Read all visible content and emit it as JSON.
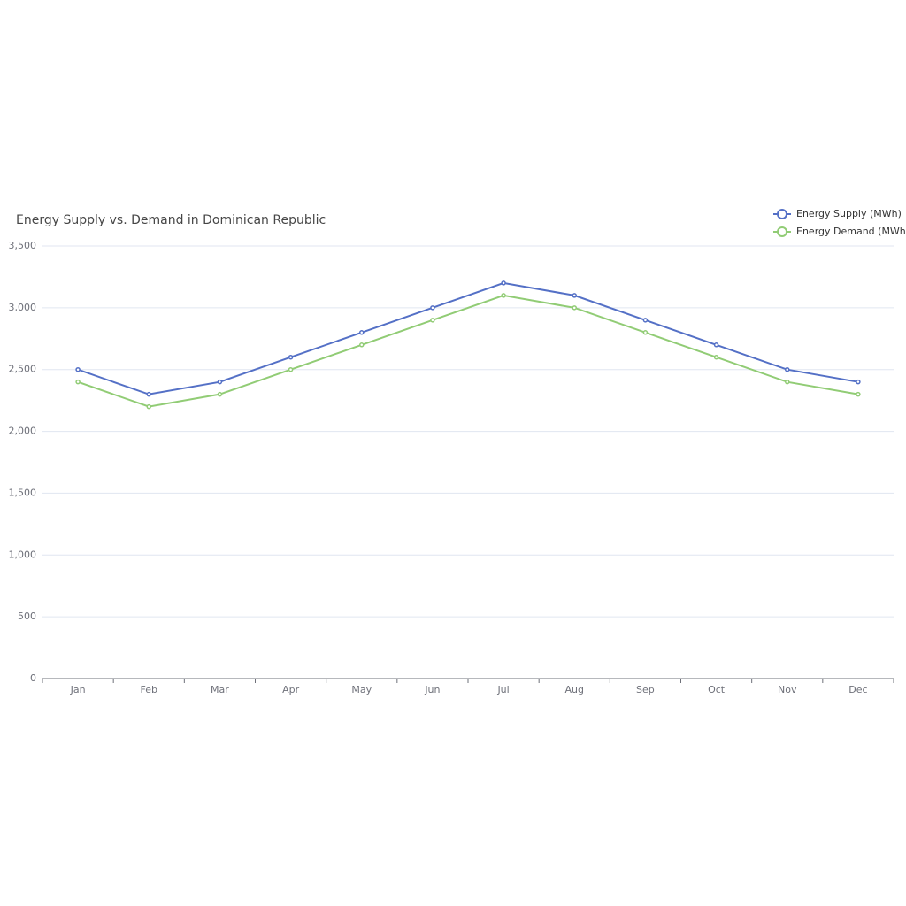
{
  "chart_data": {
    "type": "line",
    "title": "Energy Supply vs. Demand in Dominican Republic",
    "categories": [
      "Jan",
      "Feb",
      "Mar",
      "Apr",
      "May",
      "Jun",
      "Jul",
      "Aug",
      "Sep",
      "Oct",
      "Nov",
      "Dec"
    ],
    "series": [
      {
        "name": "Energy Supply (MWh)",
        "color": "#5470c6",
        "values": [
          2500,
          2300,
          2400,
          2600,
          2800,
          3000,
          3200,
          3100,
          2900,
          2700,
          2500,
          2400
        ]
      },
      {
        "name": "Energy Demand (MWh)",
        "color": "#91cc75",
        "values": [
          2400,
          2200,
          2300,
          2500,
          2700,
          2900,
          3100,
          3000,
          2800,
          2600,
          2400,
          2300
        ]
      }
    ],
    "ylim": [
      0,
      3500
    ],
    "yticks": [
      0,
      500,
      {
        "value": 1000,
        "label": "1,000"
      },
      {
        "value": 1500,
        "label": "1,500"
      },
      {
        "value": 2000,
        "label": "2,000"
      },
      {
        "value": 2500,
        "label": "2,500"
      },
      {
        "value": 3000,
        "label": "3,000"
      },
      {
        "value": 3500,
        "label": "3,500"
      }
    ],
    "grid": true,
    "legend": "top-right"
  }
}
